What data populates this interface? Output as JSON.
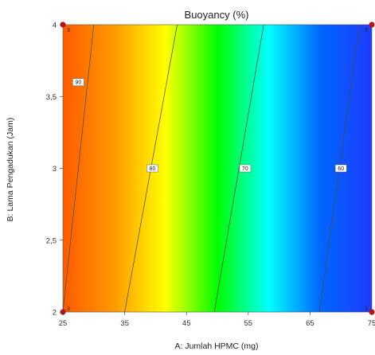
{
  "chart_data": {
    "type": "heatmap",
    "title": "Buoyancy (%)",
    "xlabel": "A: Jumlah HPMC (mg)",
    "ylabel": "B: Lama Pengadukan (Jam)",
    "xlim": [
      25,
      75
    ],
    "ylim": [
      2,
      4
    ],
    "x_ticks": [
      "25",
      "35",
      "45",
      "55",
      "65",
      "75"
    ],
    "y_ticks": [
      "2",
      "2,5",
      "3",
      "3,5",
      "4"
    ],
    "color_scale": [
      "#ff5a00",
      "#ff9a00",
      "#ffff00",
      "#00ff00",
      "#00ffff",
      "#0066ff",
      "#1f3cff"
    ],
    "contours": [
      {
        "level": "90",
        "bottom_x": 25.0,
        "top_x": 30.0,
        "label_x": 27.5,
        "label_y": 3.6
      },
      {
        "level": "80",
        "bottom_x": 35.0,
        "top_x": 43.5,
        "label_x": 39.5,
        "label_y": 3.0
      },
      {
        "level": "70",
        "bottom_x": 49.5,
        "top_x": 57.5,
        "label_x": 54.5,
        "label_y": 3.0
      },
      {
        "level": "60",
        "bottom_x": 66.5,
        "top_x": 73.0,
        "label_x": 70.0,
        "label_y": 3.0
      }
    ],
    "design_points": [
      {
        "x": 25,
        "y": 2,
        "label": "3"
      },
      {
        "x": 25,
        "y": 4,
        "label": "3"
      },
      {
        "x": 75,
        "y": 2,
        "label": "3"
      },
      {
        "x": 75,
        "y": 4,
        "label": "3"
      }
    ]
  }
}
